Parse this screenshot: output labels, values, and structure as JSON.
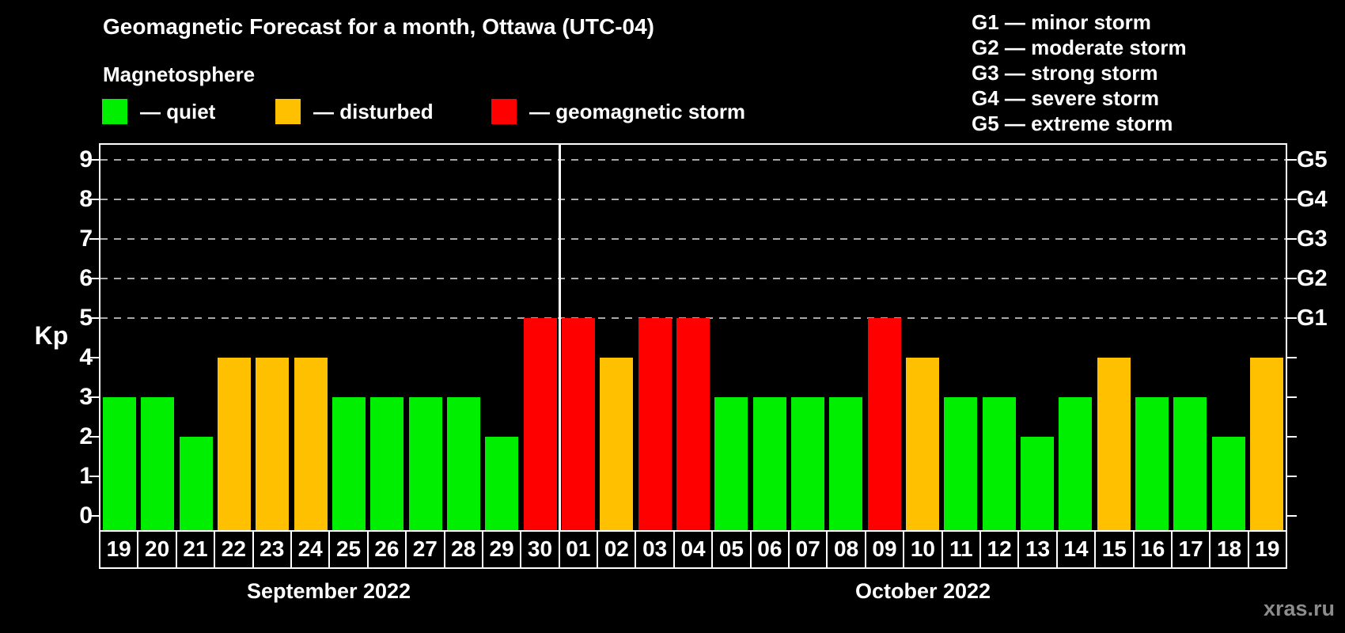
{
  "header": {
    "title": "Geomagnetic Forecast for a month, Ottawa (UTC-04)",
    "subtitle": "Magnetosphere",
    "watermark": "xras.ru"
  },
  "legend": [
    {
      "name": "quiet",
      "label": "— quiet",
      "color": "#00ee00"
    },
    {
      "name": "disturbed",
      "label": "— disturbed",
      "color": "#ffc000"
    },
    {
      "name": "storm",
      "label": "— geomagnetic storm",
      "color": "#ff0000"
    }
  ],
  "storm_scale_legend": [
    "G1 — minor storm",
    "G2 — moderate storm",
    "G3 — strong storm",
    "G4 — severe storm",
    "G5 — extreme storm"
  ],
  "colors": {
    "quiet": "#00ee00",
    "disturbed": "#ffc000",
    "storm": "#ff0000",
    "axis": "#ffffff",
    "gridline": "#a8a8a8",
    "background": "#000000",
    "watermark": "#8c8c8c"
  },
  "chart_data": {
    "type": "bar",
    "title": "Geomagnetic Forecast for a month, Ottawa (UTC-04)",
    "xlabel": "",
    "ylabel": "Kp",
    "ylim": [
      0,
      9
    ],
    "yticks_left": [
      0,
      1,
      2,
      3,
      4,
      5,
      6,
      7,
      8,
      9
    ],
    "gridlines_kp": [
      5,
      6,
      7,
      8,
      9
    ],
    "grid_style": "dashed horizontal lines at Kp 5-9 only",
    "legend_position": "top-left",
    "right_axis": [
      {
        "label": "G1",
        "kp": 5
      },
      {
        "label": "G2",
        "kp": 6
      },
      {
        "label": "G3",
        "kp": 7
      },
      {
        "label": "G4",
        "kp": 8
      },
      {
        "label": "G5",
        "kp": 9
      }
    ],
    "months": [
      {
        "label": "September 2022",
        "count": 12
      },
      {
        "label": "October 2022",
        "count": 19
      }
    ],
    "bars": [
      {
        "day": "19",
        "month": "September 2022",
        "kp": 3,
        "status": "quiet"
      },
      {
        "day": "20",
        "month": "September 2022",
        "kp": 3,
        "status": "quiet"
      },
      {
        "day": "21",
        "month": "September 2022",
        "kp": 2,
        "status": "quiet"
      },
      {
        "day": "22",
        "month": "September 2022",
        "kp": 4,
        "status": "disturbed"
      },
      {
        "day": "23",
        "month": "September 2022",
        "kp": 4,
        "status": "disturbed"
      },
      {
        "day": "24",
        "month": "September 2022",
        "kp": 4,
        "status": "disturbed"
      },
      {
        "day": "25",
        "month": "September 2022",
        "kp": 3,
        "status": "quiet"
      },
      {
        "day": "26",
        "month": "September 2022",
        "kp": 3,
        "status": "quiet"
      },
      {
        "day": "27",
        "month": "September 2022",
        "kp": 3,
        "status": "quiet"
      },
      {
        "day": "28",
        "month": "September 2022",
        "kp": 3,
        "status": "quiet"
      },
      {
        "day": "29",
        "month": "September 2022",
        "kp": 2,
        "status": "quiet"
      },
      {
        "day": "30",
        "month": "September 2022",
        "kp": 5,
        "status": "storm"
      },
      {
        "day": "01",
        "month": "October 2022",
        "kp": 5,
        "status": "storm"
      },
      {
        "day": "02",
        "month": "October 2022",
        "kp": 4,
        "status": "disturbed"
      },
      {
        "day": "03",
        "month": "October 2022",
        "kp": 5,
        "status": "storm"
      },
      {
        "day": "04",
        "month": "October 2022",
        "kp": 5,
        "status": "storm"
      },
      {
        "day": "05",
        "month": "October 2022",
        "kp": 3,
        "status": "quiet"
      },
      {
        "day": "06",
        "month": "October 2022",
        "kp": 3,
        "status": "quiet"
      },
      {
        "day": "07",
        "month": "October 2022",
        "kp": 3,
        "status": "quiet"
      },
      {
        "day": "08",
        "month": "October 2022",
        "kp": 3,
        "status": "quiet"
      },
      {
        "day": "09",
        "month": "October 2022",
        "kp": 5,
        "status": "storm"
      },
      {
        "day": "10",
        "month": "October 2022",
        "kp": 4,
        "status": "disturbed"
      },
      {
        "day": "11",
        "month": "October 2022",
        "kp": 3,
        "status": "quiet"
      },
      {
        "day": "12",
        "month": "October 2022",
        "kp": 3,
        "status": "quiet"
      },
      {
        "day": "13",
        "month": "October 2022",
        "kp": 2,
        "status": "quiet"
      },
      {
        "day": "14",
        "month": "October 2022",
        "kp": 3,
        "status": "quiet"
      },
      {
        "day": "15",
        "month": "October 2022",
        "kp": 4,
        "status": "disturbed"
      },
      {
        "day": "16",
        "month": "October 2022",
        "kp": 3,
        "status": "quiet"
      },
      {
        "day": "17",
        "month": "October 2022",
        "kp": 3,
        "status": "quiet"
      },
      {
        "day": "18",
        "month": "October 2022",
        "kp": 2,
        "status": "quiet"
      },
      {
        "day": "19",
        "month": "October 2022",
        "kp": 4,
        "status": "disturbed"
      }
    ]
  }
}
